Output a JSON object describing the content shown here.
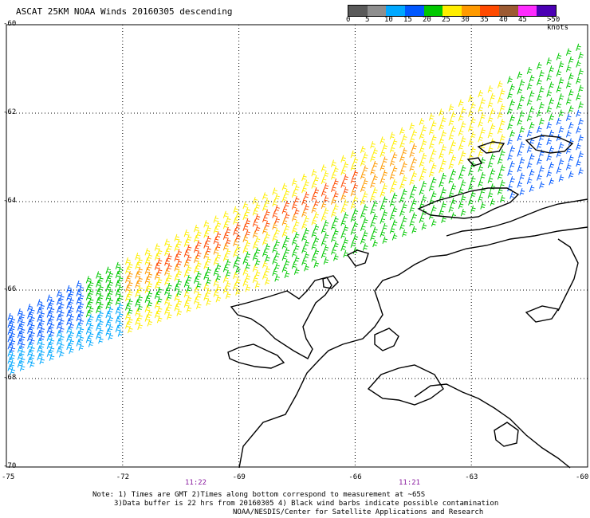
{
  "title": "ASCAT 25KM NOAA Winds 20160305 descending",
  "legend": {
    "unit": ">50 knots",
    "tick_labels": [
      "0",
      "5",
      "10",
      "15",
      "20",
      "25",
      "30",
      "35",
      "40",
      "45"
    ],
    "colors": [
      "#5a5a5a",
      "#8e8e8e",
      "#00a8ff",
      "#0058ff",
      "#00c800",
      "#ffee00",
      "#ff9a00",
      "#ff4a00",
      "#9c5a32",
      "#ff2cff",
      "#4b00b4"
    ]
  },
  "notes": {
    "line1": "Note: 1) Times are GMT 2)Times along bottom correspond to measurement at ~65S",
    "line2": "3)Data buffer is 22 hrs from 20160305 4) Black wind barbs indicate possible contamination",
    "line3": "NOAA/NESDIS/Center for Satellite Applications and Research"
  },
  "times": [
    "11:22",
    "11:21"
  ],
  "chart_data": {
    "type": "scatter",
    "title": "ASCAT 25KM NOAA Winds 20160305 descending",
    "xlabel": "",
    "ylabel": "",
    "xlim": [
      -75,
      -60
    ],
    "ylim": [
      -70,
      -60
    ],
    "x_ticks": [
      "-75",
      "-72",
      "-69",
      "-66",
      "-63",
      "-60"
    ],
    "y_ticks": [
      "-60",
      "-62",
      "-64",
      "-66",
      "-68",
      "-70"
    ],
    "grid": true,
    "legend_placement": "top-right",
    "series": [
      {
        "name": "0",
        "color": "#5a5a5a"
      },
      {
        "name": "5",
        "color": "#00a8ff"
      },
      {
        "name": "10",
        "color": "#0058ff"
      },
      {
        "name": "15",
        "color": "#00c800"
      },
      {
        "name": "20",
        "color": "#ffee00"
      },
      {
        "name": "25",
        "color": "#ff9a00"
      },
      {
        "name": "30",
        "color": "#ff4a00"
      }
    ]
  }
}
